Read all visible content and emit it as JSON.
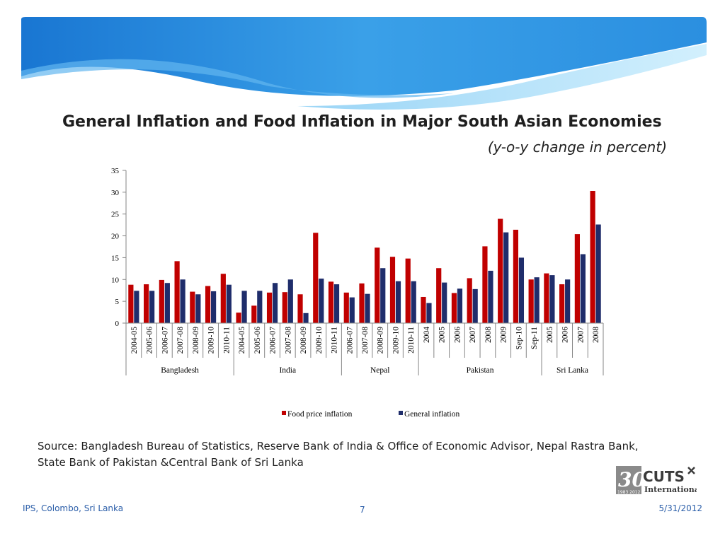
{
  "slide": {
    "title": "General Inflation and Food Inflation in Major South Asian Economies",
    "subtitle": "(y-o-y change in percent)",
    "source_line1": "Source: Bangladesh Bureau of Statistics, Reserve Bank of India & Office of Economic Advisor, Nepal Rastra Bank,",
    "source_line2": "State Bank of Pakistan &Central Bank of Sri Lanka",
    "footer_left": "IPS, Colombo, Sri Lanka",
    "footer_page": "7",
    "footer_date": "5/31/2012",
    "logo": {
      "number": "30",
      "name": "CUTS",
      "sub": "International",
      "years": "1983 2012"
    }
  },
  "colors": {
    "food": "#c00000",
    "general": "#1f2d6b",
    "banner_dark": "#1e7fd6",
    "banner_light": "#9fd8f7",
    "footer_text": "#2a5da8"
  },
  "chart_data": {
    "type": "bar",
    "ylim": [
      0,
      35
    ],
    "yticks": [
      "0",
      "5",
      "10",
      "15",
      "20",
      "25",
      "30",
      "35"
    ],
    "legend_position": "bottom",
    "series": [
      {
        "name": "Food price inflation",
        "values": [
          8.8,
          8.9,
          9.9,
          14.2,
          7.2,
          8.5,
          11.3,
          2.4,
          4.0,
          7.0,
          7.1,
          6.6,
          20.7,
          9.5,
          7.0,
          9.1,
          17.3,
          15.2,
          14.8,
          6.0,
          12.6,
          6.9,
          10.3,
          17.6,
          23.9,
          21.4,
          10.0,
          11.4,
          8.9,
          20.4,
          30.3
        ]
      },
      {
        "name": "General inflation",
        "values": [
          7.4,
          7.4,
          9.2,
          10.0,
          6.6,
          7.3,
          8.8,
          7.4,
          7.4,
          9.2,
          10.0,
          2.3,
          10.2,
          8.9,
          5.9,
          6.7,
          12.6,
          9.6,
          9.6,
          4.6,
          9.3,
          7.9,
          7.8,
          12.0,
          20.8,
          15.0,
          10.5,
          11.0,
          10.0,
          15.8,
          22.6
        ]
      }
    ],
    "groups": [
      {
        "name": "Bangladesh",
        "categories": [
          "2004-05",
          "2005-06",
          "2006-07",
          "2007-08",
          "2008-09",
          "2009-10",
          "2010-11"
        ]
      },
      {
        "name": "India",
        "categories": [
          "2004-05",
          "2005-06",
          "2006-07",
          "2007-08",
          "2008-09",
          "2009-10",
          "2010-11"
        ]
      },
      {
        "name": "Nepal",
        "categories": [
          "2006-07",
          "2007-08",
          "2008-09",
          "2009-10",
          "2010-11"
        ]
      },
      {
        "name": "Pakistan",
        "categories": [
          "2004",
          "2005",
          "2006",
          "2007",
          "2008",
          "2009",
          "Sep-10",
          "Sep-11"
        ]
      },
      {
        "name": "Sri Lanka",
        "categories": [
          "2005",
          "2006",
          "2007",
          "2008"
        ]
      }
    ]
  }
}
